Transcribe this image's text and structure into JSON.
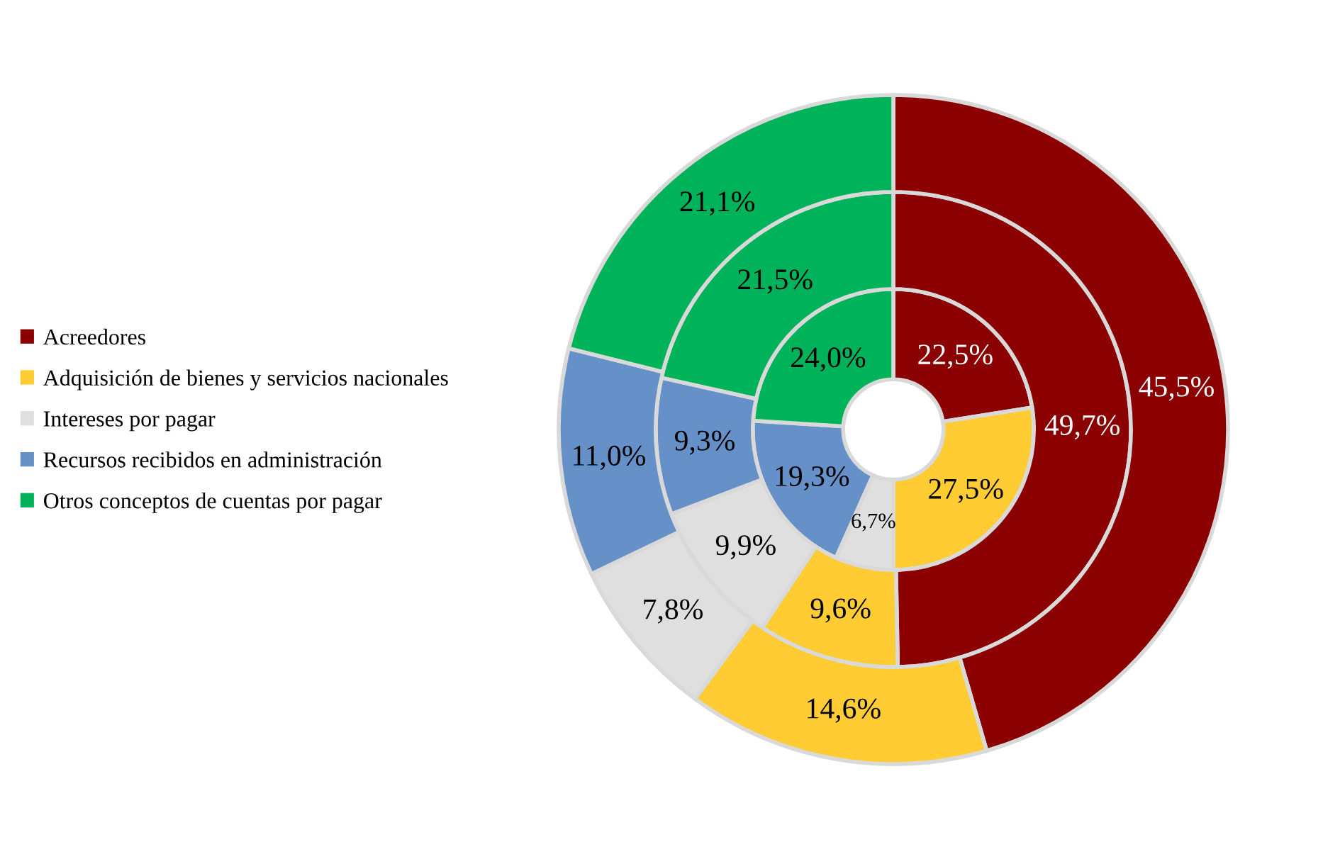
{
  "chart_data": {
    "type": "donut",
    "categories": [
      "Acreedores",
      "Adquisición de bienes y servicios nacionales",
      "Intereses por pagar",
      "Recursos recibidos en administración",
      "Otros conceptos de cuentas por pagar"
    ],
    "colors": [
      "#8b0000",
      "#ffcc33",
      "#e0dfdf",
      "#6690c8",
      "#00b259"
    ],
    "series": [
      {
        "values": [
          22.5,
          27.5,
          6.7,
          19.3,
          24.0
        ],
        "value_labels": [
          "22,5%",
          "27,5%",
          "6,7%",
          "19,3%",
          "24,0%"
        ]
      },
      {
        "values": [
          49.7,
          9.6,
          9.9,
          9.3,
          21.5
        ],
        "value_labels": [
          "49,7%",
          "9,6%",
          "9,9%",
          "9,3%",
          "21,5%"
        ]
      },
      {
        "values": [
          45.5,
          14.6,
          7.8,
          11.0,
          21.1
        ],
        "value_labels": [
          "45,5%",
          "14,6%",
          "7,8%",
          "11,0%",
          "21,1%"
        ]
      }
    ],
    "legend": "left"
  }
}
